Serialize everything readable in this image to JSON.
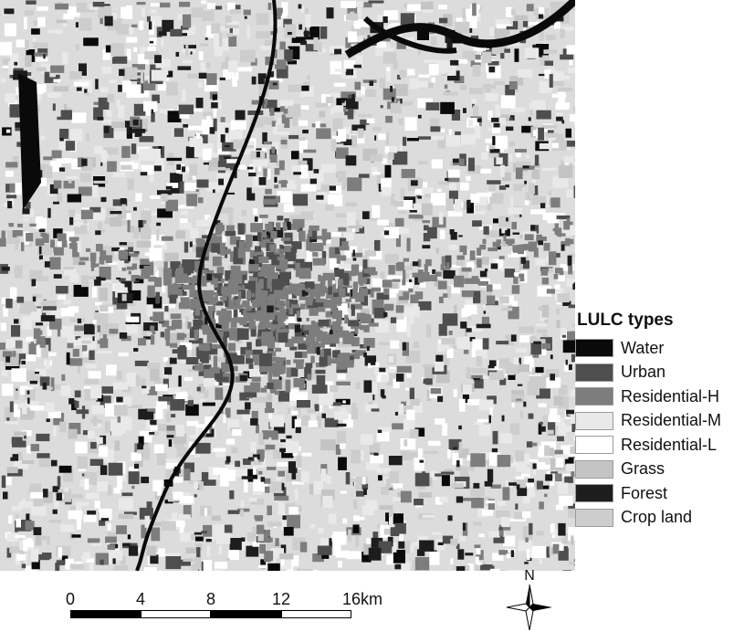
{
  "legend": {
    "title": "LULC types",
    "items": [
      {
        "label": "Water",
        "color": "#0a0a0a"
      },
      {
        "label": "Urban",
        "color": "#4e4e4e"
      },
      {
        "label": "Residential-H",
        "color": "#7d7d7d"
      },
      {
        "label": "Residential-M",
        "color": "#e9e9e9"
      },
      {
        "label": "Residential-L",
        "color": "#ffffff"
      },
      {
        "label": "Grass",
        "color": "#c4c4c4"
      },
      {
        "label": "Forest",
        "color": "#1d1d1d"
      },
      {
        "label": "Crop land",
        "color": "#cdcdcd"
      }
    ]
  },
  "scale_bar": {
    "ticks": [
      "0",
      "4",
      "8",
      "12",
      "16"
    ],
    "unit": "km"
  },
  "north_arrow": {
    "label": "N"
  }
}
